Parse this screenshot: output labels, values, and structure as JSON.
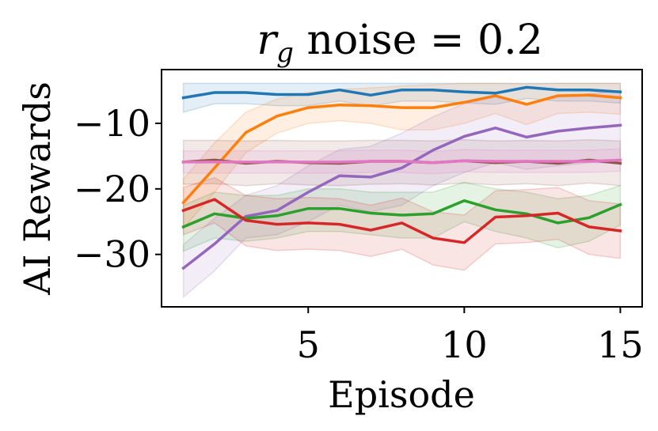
{
  "chart_data": {
    "type": "line",
    "title_main": "r",
    "title_sub": "g",
    "title_rest": " noise = 0.2",
    "xlabel": "Episode",
    "ylabel": "AI Rewards",
    "xlim": [
      0.3,
      15.7
    ],
    "ylim": [
      -38,
      -1.8
    ],
    "xticks": [
      5,
      10,
      15
    ],
    "xtick_labels": [
      "5",
      "10",
      "15"
    ],
    "yticks": [
      -10,
      -20,
      -30
    ],
    "ytick_labels": [
      "−10",
      "−20",
      "−30"
    ],
    "x": [
      1,
      2,
      3,
      4,
      5,
      6,
      7,
      8,
      9,
      10,
      11,
      12,
      13,
      14,
      15
    ],
    "series": [
      {
        "name": "blue",
        "color": "#1f77b4",
        "values": [
          -6.1,
          -5.3,
          -5.3,
          -5.6,
          -5.6,
          -4.9,
          -5.7,
          -4.9,
          -4.9,
          -5.2,
          -5.4,
          -4.5,
          -4.9,
          -4.9,
          -5.2
        ],
        "upper": [
          -3.9,
          -3.9,
          -3.9,
          -3.9,
          -3.9,
          -3.9,
          -3.9,
          -3.9,
          -3.9,
          -3.9,
          -3.9,
          -3.9,
          -3.9,
          -3.9,
          -3.9
        ],
        "lower": [
          -8.3,
          -7.0,
          -7.0,
          -7.3,
          -7.3,
          -6.6,
          -7.4,
          -6.6,
          -6.6,
          -6.9,
          -7.1,
          -6.2,
          -6.6,
          -6.6,
          -6.9
        ]
      },
      {
        "name": "orange",
        "color": "#ff7f0e",
        "values": [
          -22.1,
          -16.8,
          -11.4,
          -8.9,
          -7.6,
          -7.2,
          -7.3,
          -7.6,
          -7.6,
          -6.8,
          -5.8,
          -7.1,
          -5.8,
          -5.7,
          -6.1
        ],
        "upper": [
          -18.5,
          -13.0,
          -8.3,
          -6.3,
          -5.3,
          -4.8,
          -4.6,
          -4.3,
          -4.1,
          -3.9,
          -3.9,
          -4.0,
          -3.9,
          -3.9,
          -3.9
        ],
        "lower": [
          -26.0,
          -20.5,
          -14.5,
          -11.5,
          -10.0,
          -9.6,
          -10.0,
          -11.0,
          -11.0,
          -10.0,
          -8.5,
          -10.2,
          -8.5,
          -8.3,
          -8.6
        ]
      },
      {
        "name": "purple",
        "color": "#9467bd",
        "values": [
          -32.1,
          -28.4,
          -24.2,
          -23.3,
          -20.5,
          -18.0,
          -18.2,
          -16.8,
          -14.1,
          -12.0,
          -10.7,
          -12.1,
          -11.2,
          -10.7,
          -10.3
        ],
        "upper": [
          -28.5,
          -24.5,
          -21.0,
          -19.5,
          -16.5,
          -14.0,
          -13.5,
          -11.5,
          -9.0,
          -7.0,
          -6.0,
          -7.0,
          -6.0,
          -5.5,
          -5.0
        ],
        "lower": [
          -36.5,
          -32.5,
          -27.5,
          -27.0,
          -25.0,
          -22.5,
          -23.5,
          -22.5,
          -19.5,
          -17.5,
          -16.0,
          -17.0,
          -16.5,
          -16.0,
          -16.0
        ]
      },
      {
        "name": "brown",
        "color": "#8c564b",
        "values": [
          -15.9,
          -15.6,
          -16.1,
          -15.8,
          -16.0,
          -16.1,
          -15.8,
          -15.8,
          -16.0,
          -15.7,
          -16.0,
          -15.8,
          -16.1,
          -15.6,
          -16.1
        ],
        "upper": [
          -12.6,
          -12.6,
          -12.7,
          -12.6,
          -12.7,
          -12.7,
          -12.6,
          -12.6,
          -12.7,
          -12.5,
          -12.7,
          -12.6,
          -12.7,
          -12.5,
          -12.7
        ],
        "lower": [
          -19.3,
          -19.2,
          -19.5,
          -19.2,
          -19.4,
          -19.5,
          -19.3,
          -19.2,
          -19.4,
          -19.1,
          -19.4,
          -19.2,
          -19.5,
          -19.1,
          -19.5
        ]
      },
      {
        "name": "pink",
        "color": "#e377c2",
        "values": [
          -15.9,
          -15.9,
          -15.9,
          -15.9,
          -15.9,
          -15.9,
          -15.8,
          -15.8,
          -16.0,
          -15.7,
          -15.8,
          -15.8,
          -15.8,
          -15.8,
          -15.6
        ],
        "upper": [
          -14.2,
          -14.2,
          -14.2,
          -14.2,
          -14.2,
          -14.2,
          -14.1,
          -14.1,
          -14.3,
          -14.0,
          -14.1,
          -14.1,
          -14.1,
          -14.1,
          -13.9
        ],
        "lower": [
          -17.6,
          -17.6,
          -17.6,
          -17.6,
          -17.6,
          -17.6,
          -17.5,
          -17.5,
          -17.7,
          -17.4,
          -17.5,
          -17.5,
          -17.5,
          -17.5,
          -17.3
        ]
      },
      {
        "name": "green",
        "color": "#2ca02c",
        "values": [
          -25.8,
          -23.8,
          -24.5,
          -24.1,
          -23.0,
          -23.0,
          -23.7,
          -24.0,
          -23.8,
          -21.8,
          -23.2,
          -23.8,
          -25.2,
          -24.4,
          -22.4
        ],
        "upper": [
          -22.5,
          -20.5,
          -21.0,
          -21.0,
          -20.0,
          -20.0,
          -20.5,
          -20.5,
          -20.5,
          -19.0,
          -20.0,
          -20.5,
          -21.5,
          -21.0,
          -19.5
        ],
        "lower": [
          -29.5,
          -27.5,
          -28.0,
          -27.5,
          -26.5,
          -26.5,
          -27.0,
          -27.5,
          -27.5,
          -25.0,
          -26.5,
          -27.5,
          -29.0,
          -28.0,
          -25.5
        ]
      },
      {
        "name": "red",
        "color": "#d62728",
        "values": [
          -23.3,
          -21.6,
          -24.8,
          -25.4,
          -25.2,
          -25.4,
          -26.3,
          -25.2,
          -27.5,
          -28.2,
          -24.3,
          -24.1,
          -23.7,
          -25.8,
          -26.4
        ],
        "upper": [
          -19.8,
          -18.3,
          -21.0,
          -21.5,
          -21.3,
          -21.5,
          -22.5,
          -21.4,
          -23.5,
          -24.0,
          -20.3,
          -20.1,
          -19.8,
          -21.8,
          -22.3
        ],
        "lower": [
          -27.0,
          -25.2,
          -28.7,
          -29.4,
          -29.2,
          -29.4,
          -30.3,
          -29.2,
          -31.6,
          -32.4,
          -28.4,
          -28.2,
          -27.7,
          -30.0,
          -30.6
        ]
      }
    ]
  }
}
